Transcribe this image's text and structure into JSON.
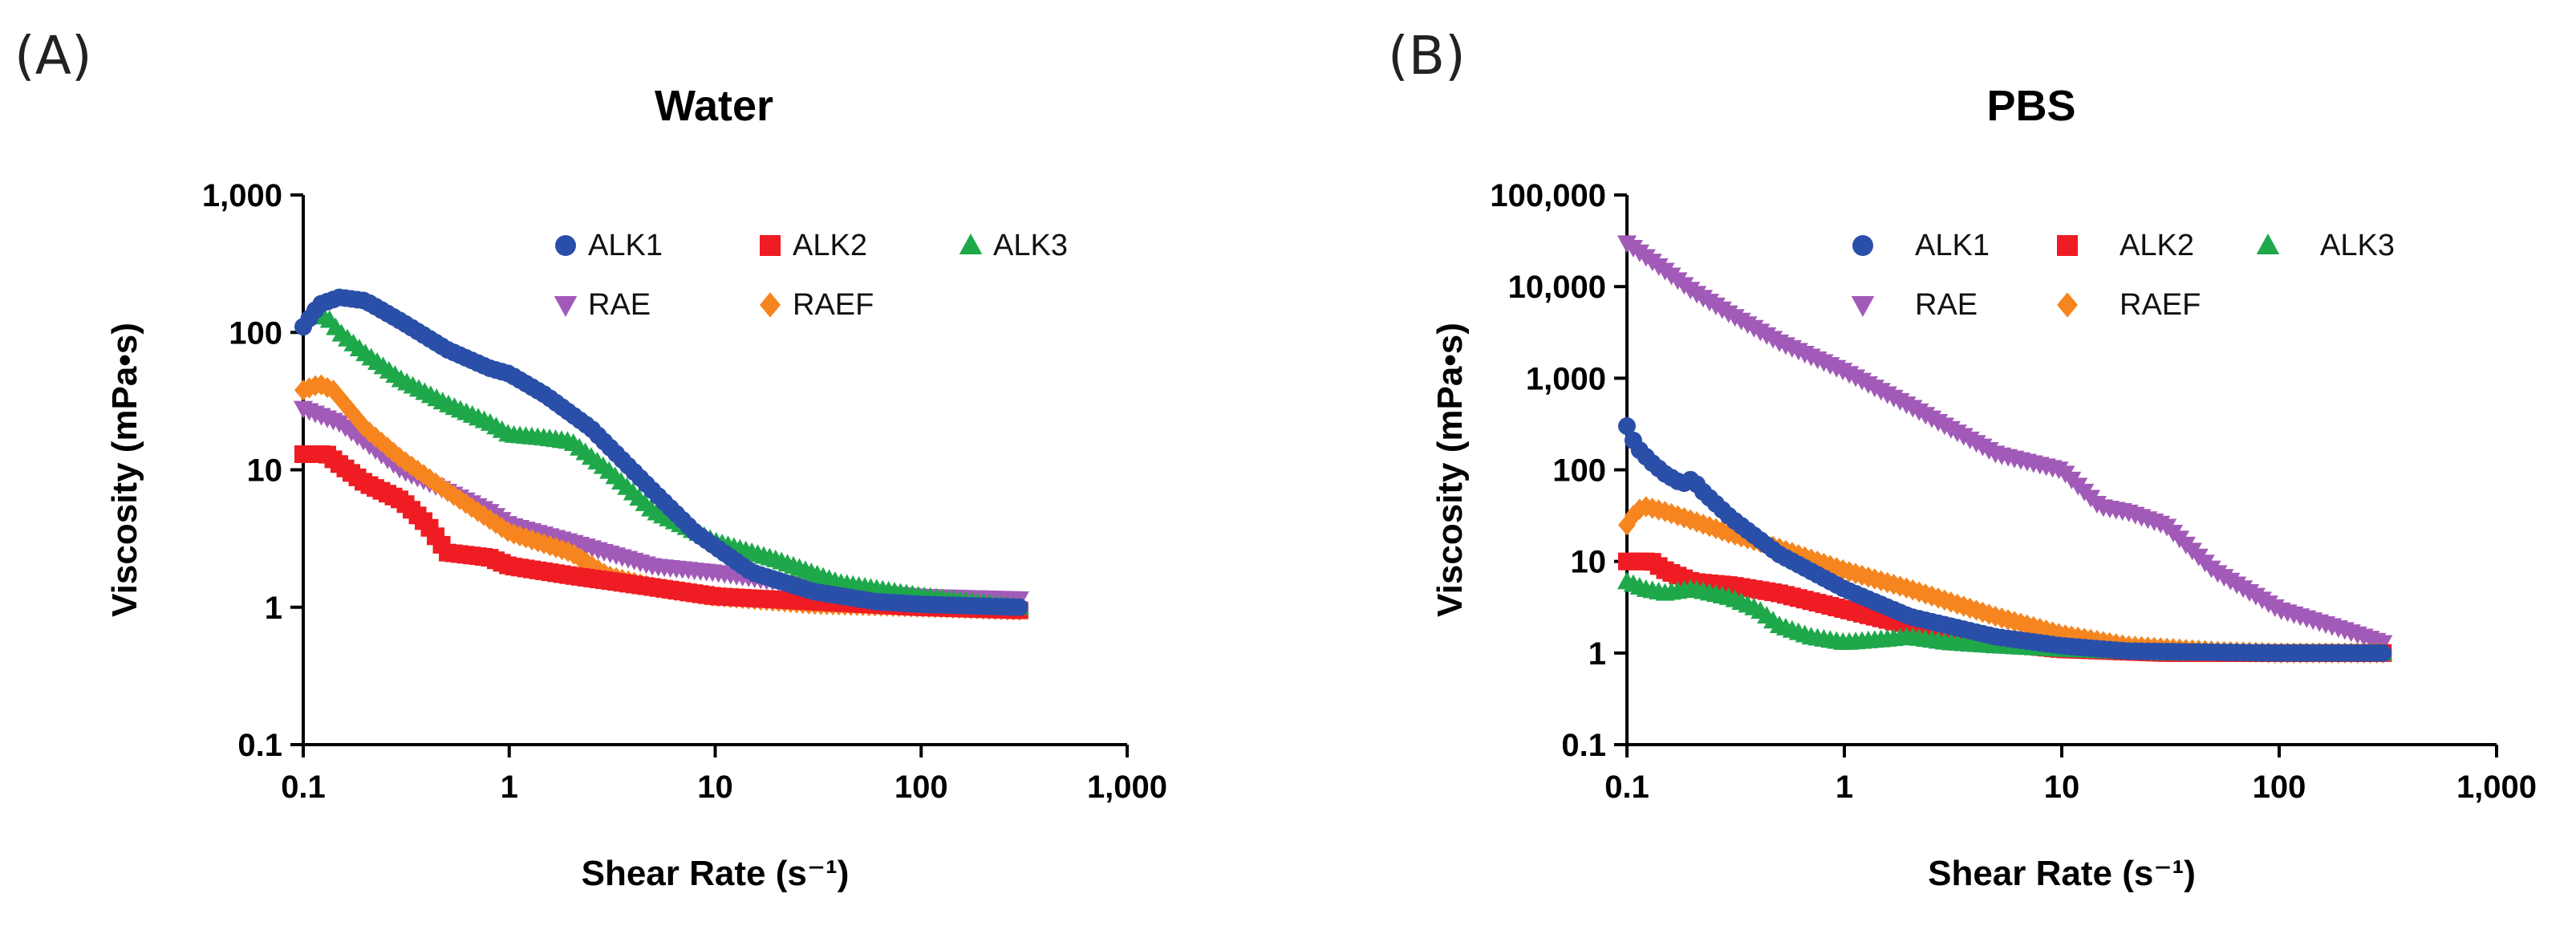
{
  "colors": {
    "ALK1": "#2a4fa9",
    "ALK2": "#ef1c24",
    "ALK3": "#1fa84a",
    "RAE": "#a25ab8",
    "RAEF": "#f6851f"
  },
  "chart_data": [
    {
      "panel": "(A)",
      "type": "scatter",
      "title": "Water",
      "xlabel": "Shear Rate (s⁻¹)",
      "ylabel": "Viscosity (mPa•s)",
      "xscale": "log",
      "yscale": "log",
      "xlim": [
        0.1,
        1000
      ],
      "ylim": [
        0.1,
        1000
      ],
      "xticks": [
        "0.1",
        "1",
        "10",
        "100",
        "1,000"
      ],
      "yticks": [
        "0.1",
        "1",
        "10",
        "100",
        "1,000"
      ],
      "legend": {
        "placement": "top-right",
        "columns": 3,
        "entries": [
          {
            "name": "ALK1",
            "marker": "circle"
          },
          {
            "name": "ALK2",
            "marker": "square"
          },
          {
            "name": "ALK3",
            "marker": "triangle-up"
          },
          {
            "name": "RAE",
            "marker": "triangle-down"
          },
          {
            "name": "RAEF",
            "marker": "diamond"
          }
        ]
      },
      "series": [
        {
          "name": "ALK1",
          "marker": "circle",
          "x": [
            0.1,
            0.12,
            0.15,
            0.2,
            0.3,
            0.5,
            0.8,
            1.0,
            1.5,
            2.5,
            5,
            8,
            15,
            30,
            60,
            100,
            300
          ],
          "y": [
            110,
            160,
            180,
            170,
            120,
            75,
            55,
            50,
            35,
            20,
            7,
            3.5,
            1.8,
            1.3,
            1.1,
            1.05,
            1.0
          ]
        },
        {
          "name": "ALK2",
          "marker": "square",
          "x": [
            0.1,
            0.13,
            0.15,
            0.2,
            0.3,
            0.4,
            0.5,
            0.8,
            1.0,
            2,
            5,
            10,
            30,
            100,
            300
          ],
          "y": [
            13,
            13,
            11,
            8,
            6,
            4,
            2.5,
            2.3,
            2.0,
            1.7,
            1.4,
            1.2,
            1.1,
            1.0,
            0.95
          ]
        },
        {
          "name": "ALK3",
          "marker": "triangle-up",
          "x": [
            0.11,
            0.13,
            0.15,
            0.2,
            0.3,
            0.5,
            0.8,
            1.0,
            1.5,
            2.0,
            3,
            5,
            10,
            20,
            40,
            100,
            300
          ],
          "y": [
            130,
            130,
            100,
            70,
            45,
            30,
            22,
            18,
            17,
            16,
            10,
            5,
            3,
            2.2,
            1.5,
            1.2,
            1.0
          ]
        },
        {
          "name": "RAE",
          "marker": "triangle-down",
          "x": [
            0.1,
            0.15,
            0.2,
            0.3,
            0.5,
            0.8,
            1.0,
            2,
            5,
            10,
            30,
            100,
            300
          ],
          "y": [
            28,
            22,
            16,
            10,
            7,
            5,
            4,
            3,
            2,
            1.8,
            1.4,
            1.2,
            1.15
          ]
        },
        {
          "name": "RAEF",
          "marker": "diamond",
          "x": [
            0.1,
            0.12,
            0.14,
            0.2,
            0.3,
            0.5,
            1.0,
            2.0,
            3,
            5,
            10,
            30,
            100,
            300
          ],
          "y": [
            38,
            42,
            38,
            20,
            12,
            7,
            3.5,
            2.5,
            1.7,
            1.4,
            1.2,
            1.05,
            1.0,
            0.95
          ]
        }
      ]
    },
    {
      "panel": "(B)",
      "type": "scatter",
      "title": "PBS",
      "xlabel": "Shear Rate (s⁻¹)",
      "ylabel": "Viscosity (mPa•s)",
      "xscale": "log",
      "yscale": "log",
      "xlim": [
        0.1,
        1000
      ],
      "ylim": [
        0.1,
        100000
      ],
      "xticks": [
        "0.1",
        "1",
        "10",
        "100",
        "1,000"
      ],
      "yticks": [
        "0.1",
        "1",
        "10",
        "100",
        "1,000",
        "10,000",
        "100,000"
      ],
      "legend": {
        "placement": "top-right",
        "columns": 3,
        "entries": [
          {
            "name": "ALK1",
            "marker": "circle"
          },
          {
            "name": "ALK2",
            "marker": "square"
          },
          {
            "name": "ALK3",
            "marker": "triangle-up"
          },
          {
            "name": "RAE",
            "marker": "triangle-down"
          },
          {
            "name": "RAEF",
            "marker": "diamond"
          }
        ]
      },
      "series": [
        {
          "name": "ALK1",
          "marker": "circle",
          "x": [
            0.1,
            0.11,
            0.13,
            0.15,
            0.18,
            0.2,
            0.22,
            0.3,
            0.5,
            1.0,
            2,
            5,
            10,
            20,
            100,
            300
          ],
          "y": [
            300,
            180,
            120,
            90,
            70,
            80,
            60,
            30,
            12,
            5,
            2.5,
            1.5,
            1.2,
            1.05,
            1.0,
            1.0
          ]
        },
        {
          "name": "ALK2",
          "marker": "square",
          "x": [
            0.1,
            0.13,
            0.15,
            0.2,
            0.3,
            0.5,
            1.0,
            2,
            5,
            10,
            30,
            100,
            300
          ],
          "y": [
            10,
            10,
            8,
            6,
            5.5,
            4.5,
            3,
            2,
            1.3,
            1.1,
            1.0,
            1.0,
            1.0
          ]
        },
        {
          "name": "ALK3",
          "marker": "triangle-up",
          "x": [
            0.1,
            0.12,
            0.15,
            0.2,
            0.3,
            0.4,
            0.5,
            0.7,
            1.0,
            1.5,
            2,
            3,
            5,
            10,
            30,
            100,
            300
          ],
          "y": [
            6,
            5,
            4.5,
            5,
            4,
            3,
            2,
            1.5,
            1.3,
            1.4,
            1.5,
            1.3,
            1.2,
            1.1,
            1.0,
            1.0,
            1.0
          ]
        },
        {
          "name": "RAE",
          "marker": "triangle-down",
          "x": [
            0.1,
            0.15,
            0.2,
            0.3,
            0.5,
            1.0,
            2,
            5,
            10,
            15,
            20,
            30,
            50,
            100,
            200,
            300
          ],
          "y": [
            30000,
            15000,
            9000,
            5000,
            2500,
            1200,
            500,
            150,
            100,
            40,
            35,
            25,
            8,
            3,
            1.8,
            1.3
          ]
        },
        {
          "name": "RAEF",
          "marker": "diamond",
          "x": [
            0.1,
            0.11,
            0.12,
            0.15,
            0.2,
            0.3,
            0.5,
            1.0,
            2,
            5,
            10,
            20,
            50,
            100,
            300
          ],
          "y": [
            25,
            35,
            40,
            35,
            28,
            20,
            14,
            8,
            5,
            2.5,
            1.6,
            1.2,
            1.05,
            1.0,
            1.0
          ]
        }
      ]
    }
  ]
}
